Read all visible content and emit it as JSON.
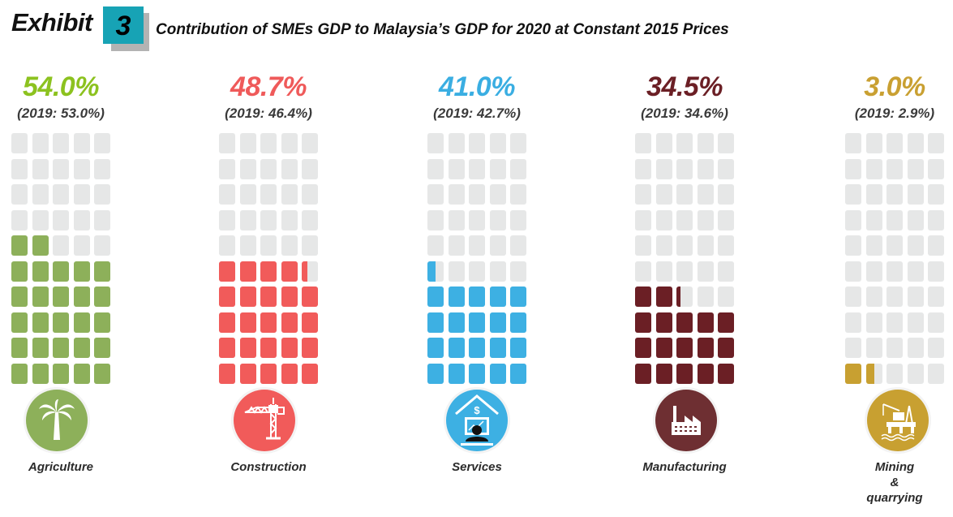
{
  "header": {
    "exhibit_word": "Exhibit",
    "exhibit_number": "3",
    "title": "Contribution of SMEs GDP to Malaysia’s GDP for 2020 at Constant 2015 Prices"
  },
  "chart_data": {
    "type": "waffle",
    "title": "Contribution of SMEs GDP to Malaysia’s GDP for 2020 at Constant 2015 Prices",
    "grid": {
      "columns": 5,
      "rows": 10,
      "percent_per_cell": 2
    },
    "unit": "%",
    "series": [
      {
        "name": "Agriculture",
        "value_2020": 54.0,
        "value_2019": 53.0,
        "value_label": "54.0%",
        "prev_label": "(2019: 53.0%)",
        "icon": "palm-tree-icon",
        "color": "#8db05a",
        "headline_color": "#8cc21f",
        "label_lines": [
          "Agriculture"
        ]
      },
      {
        "name": "Construction",
        "value_2020": 48.7,
        "value_2019": 46.4,
        "value_label": "48.7%",
        "prev_label": "(2019: 46.4%)",
        "icon": "crane-icon",
        "color": "#f15b5a",
        "headline_color": "#ef5a5a",
        "label_lines": [
          "Construction"
        ]
      },
      {
        "name": "Services",
        "value_2020": 41.0,
        "value_2019": 42.7,
        "value_label": "41.0%",
        "prev_label": "(2019: 42.7%)",
        "icon": "services-computer-icon",
        "color": "#3db0e3",
        "headline_color": "#3aaee2",
        "label_lines": [
          "Services"
        ]
      },
      {
        "name": "Manufacturing",
        "value_2020": 34.5,
        "value_2019": 34.6,
        "value_label": "34.5%",
        "prev_label": "(2019: 34.6%)",
        "icon": "factory-icon",
        "color": "#6b1f25",
        "headline_color": "#6b1f25",
        "label_lines": [
          "Manufacturing"
        ]
      },
      {
        "name": "Mining & quarrying",
        "value_2020": 3.0,
        "value_2019": 2.9,
        "value_label": "3.0%",
        "prev_label": "(2019: 2.9%)",
        "icon": "oil-rig-icon",
        "color": "#c8a031",
        "headline_color": "#c9a032",
        "label_lines": [
          "Mining",
          "&",
          "quarrying"
        ]
      }
    ],
    "empty_color": "#e6e7e7"
  }
}
